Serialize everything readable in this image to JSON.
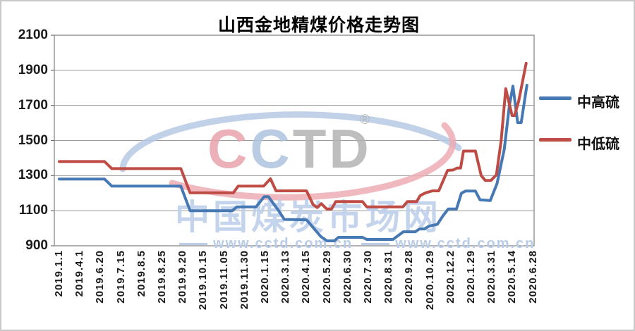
{
  "page": {
    "title": "山西金地精煤价格走势图"
  },
  "legend": {
    "items": [
      {
        "label": "中高硫",
        "color": "#4678b4"
      },
      {
        "label": "中低硫",
        "color": "#bf4b45"
      }
    ]
  },
  "watermark": {
    "logo_letters": [
      {
        "char": "C",
        "color": "#e8a3ac"
      },
      {
        "char": "C",
        "color": "#aec4e0"
      },
      {
        "char": "T",
        "color": "#b3b3b3"
      },
      {
        "char": "D",
        "color": "#b3b3b3"
      }
    ],
    "registered_mark": "®",
    "site_name": "中国煤炭市场网",
    "site_url": "www.cctd.com.cn"
  },
  "chart_data": {
    "type": "line",
    "title": "山西金地精煤价格走势图",
    "x_tick_labels": [
      "2019.1.1",
      "2019.4.1",
      "2019.6.20",
      "2019.7.15",
      "2019.8.5",
      "2019.8.25",
      "2019.9.20",
      "2019.10.15",
      "2019.11.05",
      "2019.11.30",
      "2020.1.15",
      "2020.3.13",
      "2020.4.15",
      "2020.5.29",
      "2020.6.30",
      "2020.7.30",
      "2020.8.31",
      "2020.9.28",
      "2020.10.29",
      "2020.12.2",
      "2020.1.29",
      "2020.3.31",
      "2020.5.14",
      "2020.6.28"
    ],
    "y_axis": {
      "min": 900,
      "max": 2100,
      "step": 200,
      "tick_labels": [
        "900",
        "1100",
        "1300",
        "1500",
        "1700",
        "1900",
        "2100"
      ]
    },
    "grid": "horizontal",
    "legend_position": "right",
    "x_unit_note": "point x values are in x_tick_labels index units (0 = 2019.1.1, 23 = 2020.6.28)",
    "series": [
      {
        "name": "中高硫",
        "color": "#4678b4",
        "points": [
          [
            0,
            1280
          ],
          [
            2.2,
            1280
          ],
          [
            2.55,
            1240
          ],
          [
            5.9,
            1240
          ],
          [
            6.35,
            1100
          ],
          [
            8.4,
            1100
          ],
          [
            8.62,
            1122
          ],
          [
            9.55,
            1122
          ],
          [
            9.95,
            1180
          ],
          [
            10.15,
            1180
          ],
          [
            10.45,
            1132
          ],
          [
            10.65,
            1100
          ],
          [
            10.92,
            1050
          ],
          [
            12,
            1048
          ],
          [
            12.35,
            1000
          ],
          [
            12.7,
            952
          ],
          [
            13,
            928
          ],
          [
            13.35,
            928
          ],
          [
            13.55,
            948
          ],
          [
            14.72,
            948
          ],
          [
            14.92,
            936
          ],
          [
            16.2,
            936
          ],
          [
            16.45,
            958
          ],
          [
            16.7,
            980
          ],
          [
            17.28,
            980
          ],
          [
            17.48,
            996
          ],
          [
            17.72,
            996
          ],
          [
            17.95,
            1012
          ],
          [
            18.35,
            1022
          ],
          [
            18.62,
            1070
          ],
          [
            18.88,
            1110
          ],
          [
            19.28,
            1110
          ],
          [
            19.52,
            1200
          ],
          [
            19.72,
            1212
          ],
          [
            20.2,
            1212
          ],
          [
            20.42,
            1162
          ],
          [
            20.92,
            1158
          ],
          [
            21.25,
            1255
          ],
          [
            21.6,
            1450
          ],
          [
            21.85,
            1700
          ],
          [
            22.02,
            1810
          ],
          [
            22.25,
            1602
          ],
          [
            22.42,
            1602
          ],
          [
            22.7,
            1815
          ]
        ]
      },
      {
        "name": "中低硫",
        "color": "#bf4b45",
        "points": [
          [
            0,
            1380
          ],
          [
            2.2,
            1380
          ],
          [
            2.55,
            1340
          ],
          [
            5.9,
            1340
          ],
          [
            6.35,
            1202
          ],
          [
            8.45,
            1202
          ],
          [
            8.68,
            1240
          ],
          [
            9.92,
            1240
          ],
          [
            10.25,
            1282
          ],
          [
            10.52,
            1213
          ],
          [
            12,
            1213
          ],
          [
            12.32,
            1135
          ],
          [
            12.52,
            1118
          ],
          [
            12.72,
            1140
          ],
          [
            12.98,
            1110
          ],
          [
            13.22,
            1110
          ],
          [
            13.42,
            1152
          ],
          [
            14.72,
            1152
          ],
          [
            14.92,
            1122
          ],
          [
            16.68,
            1122
          ],
          [
            16.9,
            1152
          ],
          [
            17.35,
            1152
          ],
          [
            17.52,
            1186
          ],
          [
            17.78,
            1202
          ],
          [
            18.12,
            1213
          ],
          [
            18.42,
            1213
          ],
          [
            18.85,
            1330
          ],
          [
            19.12,
            1332
          ],
          [
            19.3,
            1343
          ],
          [
            19.48,
            1343
          ],
          [
            19.62,
            1440
          ],
          [
            20.2,
            1440
          ],
          [
            20.48,
            1300
          ],
          [
            20.68,
            1272
          ],
          [
            20.95,
            1272
          ],
          [
            21.22,
            1305
          ],
          [
            21.45,
            1500
          ],
          [
            21.67,
            1795
          ],
          [
            21.98,
            1642
          ],
          [
            22.1,
            1642
          ],
          [
            22.3,
            1725
          ],
          [
            22.66,
            1940
          ]
        ]
      }
    ]
  }
}
